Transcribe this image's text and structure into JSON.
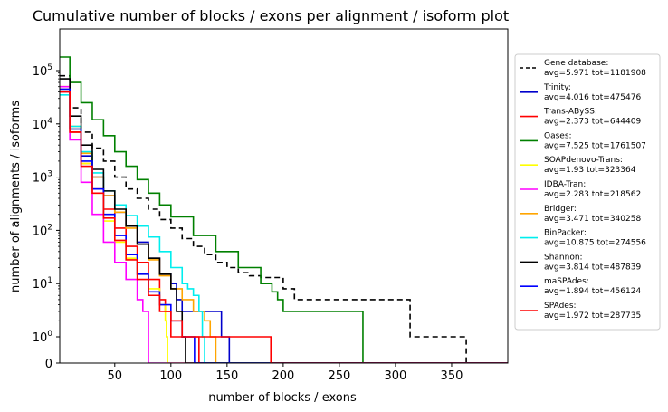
{
  "chart_data": {
    "type": "line",
    "title": "Cumulative number of blocks / exons per alignment / isoform plot",
    "xlabel": "number of blocks / exons",
    "ylabel": "number of alignments / isoforms",
    "xlim": [
      1,
      400
    ],
    "ylim": [
      0,
      600000
    ],
    "yscale": "symlog",
    "xticks": [
      50,
      100,
      150,
      200,
      250,
      300,
      350
    ],
    "yticks": [
      {
        "value": 0,
        "base": "0",
        "exp": ""
      },
      {
        "value": 1,
        "base": "10",
        "exp": "0"
      },
      {
        "value": 10,
        "base": "10",
        "exp": "1"
      },
      {
        "value": 100,
        "base": "10",
        "exp": "2"
      },
      {
        "value": 1000,
        "base": "10",
        "exp": "3"
      },
      {
        "value": 10000,
        "base": "10",
        "exp": "4"
      },
      {
        "value": 100000,
        "base": "10",
        "exp": "5"
      }
    ],
    "legend_position": "right-outside",
    "series": [
      {
        "name": "Gene database:",
        "stats": "avg=5.971 tot=1181908",
        "color": "#000000",
        "dash": "6,4",
        "x": [
          1,
          10,
          20,
          30,
          40,
          50,
          60,
          70,
          80,
          90,
          100,
          110,
          120,
          130,
          140,
          150,
          160,
          170,
          180,
          190,
          200,
          210,
          220,
          250,
          280,
          300,
          312,
          313,
          340,
          362,
          363,
          400
        ],
        "y": [
          80000,
          20000,
          7000,
          3500,
          2000,
          1000,
          600,
          400,
          250,
          160,
          110,
          70,
          50,
          35,
          25,
          20,
          16,
          14,
          13,
          13,
          8,
          5,
          5,
          5,
          5,
          5,
          5,
          1,
          1,
          1,
          0,
          0
        ]
      },
      {
        "name": "Trinity:",
        "stats": "avg=4.016 tot=475476",
        "color": "#0000cc",
        "dash": "",
        "x": [
          1,
          10,
          20,
          30,
          40,
          50,
          60,
          70,
          80,
          90,
          100,
          105,
          110,
          120,
          130,
          140,
          145,
          150,
          151,
          152,
          400
        ],
        "y": [
          40000,
          8000,
          2500,
          1000,
          450,
          220,
          120,
          60,
          30,
          15,
          10,
          5,
          3,
          3,
          3,
          3,
          1,
          1,
          1,
          0,
          0
        ]
      },
      {
        "name": "Trans-ABySS:",
        "stats": "avg=2.373 tot=644409",
        "color": "#ff0000",
        "dash": "",
        "x": [
          1,
          10,
          20,
          30,
          40,
          50,
          60,
          70,
          80,
          90,
          95,
          100,
          110,
          120,
          122,
          124,
          125,
          400
        ],
        "y": [
          40000,
          7000,
          1800,
          600,
          250,
          110,
          50,
          25,
          12,
          5,
          3,
          1,
          1,
          1,
          1,
          1,
          0,
          0
        ]
      },
      {
        "name": "Oases:",
        "stats": "avg=7.525 tot=1761507",
        "color": "#008000",
        "dash": "",
        "x": [
          1,
          10,
          20,
          30,
          40,
          50,
          60,
          70,
          80,
          90,
          100,
          120,
          140,
          160,
          180,
          190,
          195,
          200,
          220,
          250,
          269,
          270,
          271,
          400
        ],
        "y": [
          180000,
          60000,
          25000,
          12000,
          6000,
          3000,
          1600,
          900,
          500,
          300,
          180,
          80,
          40,
          20,
          10,
          7,
          5,
          3,
          3,
          3,
          3,
          3,
          0,
          0
        ]
      },
      {
        "name": "SOAPdenovo-Trans:",
        "stats": "avg=1.93 tot=323364",
        "color": "#ffff00",
        "dash": "",
        "x": [
          1,
          10,
          20,
          30,
          40,
          50,
          60,
          70,
          80,
          90,
          95,
          96,
          97,
          400
        ],
        "y": [
          50000,
          8000,
          1800,
          500,
          150,
          60,
          30,
          15,
          8,
          4,
          2,
          1,
          0,
          0
        ]
      },
      {
        "name": "IDBA-Tran:",
        "stats": "avg=2.283 tot=218562",
        "color": "#ff00ff",
        "dash": "",
        "x": [
          1,
          10,
          20,
          30,
          40,
          50,
          60,
          70,
          75,
          78,
          79,
          80,
          400
        ],
        "y": [
          50000,
          5000,
          800,
          200,
          60,
          25,
          12,
          5,
          3,
          3,
          3,
          0,
          0
        ]
      },
      {
        "name": "Bridger:",
        "stats": "avg=3.471 tot=340258",
        "color": "#ffa500",
        "dash": "",
        "x": [
          1,
          10,
          20,
          30,
          40,
          50,
          60,
          70,
          80,
          90,
          100,
          110,
          120,
          130,
          135,
          140,
          400
        ],
        "y": [
          45000,
          9000,
          2800,
          1000,
          450,
          220,
          110,
          55,
          28,
          14,
          8,
          5,
          3,
          2,
          1,
          0,
          0
        ]
      },
      {
        "name": "BinPacker:",
        "stats": "avg=10.875 tot=274556",
        "color": "#00eeee",
        "dash": "",
        "x": [
          1,
          10,
          20,
          30,
          40,
          50,
          60,
          70,
          80,
          90,
          100,
          110,
          115,
          120,
          125,
          128,
          129,
          130,
          400
        ],
        "y": [
          35000,
          9000,
          3000,
          1200,
          550,
          300,
          190,
          120,
          75,
          40,
          20,
          10,
          8,
          6,
          3,
          1,
          1,
          0,
          0
        ]
      },
      {
        "name": "Shannon:",
        "stats": "avg=3.814 tot=487839",
        "color": "#000000",
        "dash": "",
        "x": [
          1,
          10,
          20,
          30,
          40,
          50,
          60,
          70,
          80,
          90,
          100,
          105,
          110,
          112,
          113,
          400
        ],
        "y": [
          70000,
          14000,
          4000,
          1400,
          550,
          250,
          120,
          55,
          30,
          15,
          8,
          3,
          1,
          1,
          0,
          0
        ]
      },
      {
        "name": "maSPAdes:",
        "stats": "avg=1.894 tot=456124",
        "color": "#0000ff",
        "dash": "",
        "x": [
          1,
          10,
          20,
          30,
          40,
          50,
          60,
          70,
          80,
          90,
          100,
          110,
          120,
          121,
          400
        ],
        "y": [
          45000,
          8000,
          2000,
          600,
          200,
          80,
          35,
          15,
          7,
          4,
          2,
          1,
          1,
          0,
          0
        ]
      },
      {
        "name": "SPAdes:",
        "stats": "avg=1.972 tot=287735",
        "color": "#ff0000",
        "dash": "",
        "x": [
          1,
          10,
          20,
          30,
          40,
          50,
          60,
          70,
          80,
          90,
          100,
          110,
          120,
          130,
          135,
          140,
          150,
          160,
          180,
          188,
          189,
          400
        ],
        "y": [
          40000,
          7000,
          1600,
          500,
          170,
          65,
          28,
          12,
          6,
          3,
          2,
          1,
          1,
          1,
          1,
          1,
          1,
          1,
          1,
          1,
          0,
          0
        ]
      }
    ]
  }
}
